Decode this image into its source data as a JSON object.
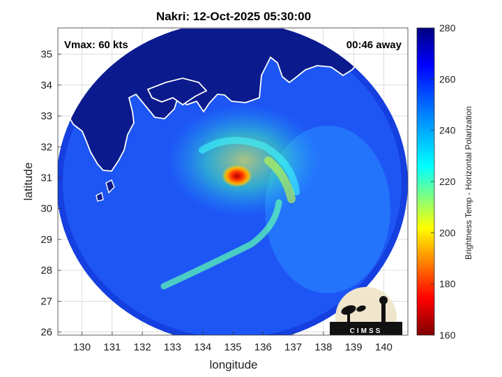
{
  "title": "Nakri: 12-Oct-2025 05:30:00",
  "vmax_label": "Vmax: 60 kts",
  "time_away_label": "00:46 away",
  "x_axis": {
    "label": "longitude",
    "ticks": [
      130,
      131,
      132,
      133,
      134,
      135,
      136,
      137,
      138,
      139,
      140
    ],
    "range": [
      129.2,
      140.8
    ]
  },
  "y_axis": {
    "label": "latitude",
    "ticks": [
      26,
      27,
      28,
      29,
      30,
      31,
      32,
      33,
      34,
      35
    ],
    "range": [
      25.9,
      35.85
    ]
  },
  "colorbar": {
    "label": "Brightness Temp - Horizontal Polarization",
    "ticks": [
      160,
      180,
      200,
      220,
      240,
      260,
      280
    ],
    "range": [
      160,
      280
    ],
    "colormap": "jet"
  },
  "logo_text": "CIMSS",
  "colors": {
    "land": "#0b1a8c",
    "ocean_base": "#1d56f5",
    "coast": "#ffffff",
    "grid": "#c8c8c8"
  },
  "storm_center": {
    "lon": 135.05,
    "lat": 31.05
  },
  "swath_center": {
    "lon": 135.1,
    "lat": 30.9
  },
  "grid_visible": true
}
